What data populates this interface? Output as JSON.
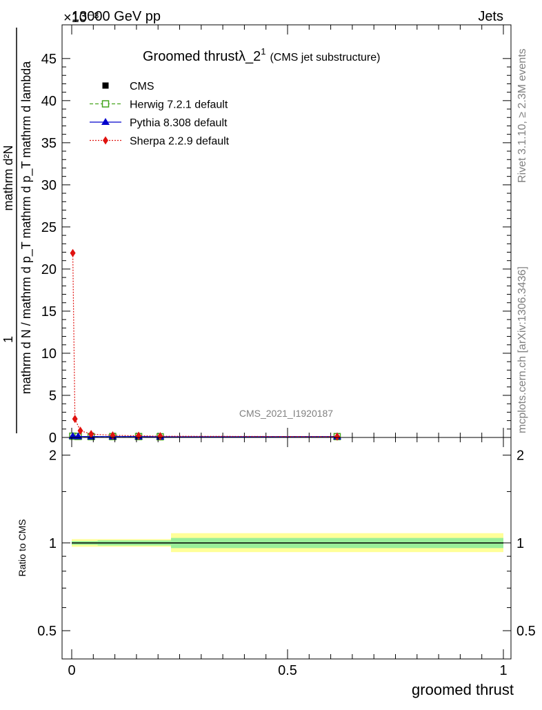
{
  "header": {
    "left": "13000 GeV pp",
    "right": "Jets",
    "exponent": "×10⁻³"
  },
  "side_labels": {
    "rivet": "Rivet 3.1.10, ≥ 2.3M events",
    "mcplots": "mcplots.cern.ch [arXiv:1306.3436]"
  },
  "analysis_id": "CMS_2021_I1920187",
  "colors": {
    "cms": "#000000",
    "herwig": "#44a41c",
    "pythia": "#0000cc",
    "sherpa": "#e0120f",
    "band_outer": "#ffff99",
    "band_inner": "#99ee99"
  },
  "chart_data": [
    {
      "type": "line",
      "title_main": "Groomed thrustλ_2",
      "title_sup": "1",
      "title_suffix": "(CMS jet substructure)",
      "ylabel_num": "mathrm d²N",
      "ylabel_den": "mathrm d N / mathrm d p_T mathrm d p_T mathrm d lambda",
      "ylabel_prefix": "1",
      "xlabel": "groomed thrust",
      "xlim": [
        0,
        1
      ],
      "ylim": [
        0,
        49
      ],
      "y_unit_scale": "1e-3",
      "yticks": [
        "0",
        "5",
        "10",
        "15",
        "20",
        "25",
        "30",
        "35",
        "40",
        "45"
      ],
      "yticks_values": [
        0,
        5,
        10,
        15,
        20,
        25,
        30,
        35,
        40,
        45
      ],
      "legend_placement": "top-left",
      "series": [
        {
          "name": "CMS",
          "key": "cms",
          "marker": "square-filled",
          "x": [
            0.0025,
            0.015,
            0.045,
            0.095,
            0.155,
            0.205,
            0.615
          ],
          "y": [
            0.15,
            0.12,
            0.1,
            0.1,
            0.1,
            0.08,
            0.1
          ]
        },
        {
          "name": "Herwig 7.2.1 default",
          "key": "herwig",
          "marker": "square-open",
          "x": [
            0.0025,
            0.015,
            0.045,
            0.095,
            0.155,
            0.205,
            0.615
          ],
          "y": [
            0.15,
            0.12,
            0.1,
            0.1,
            0.1,
            0.08,
            0.1
          ]
        },
        {
          "name": "Pythia 8.308 default",
          "key": "pythia",
          "marker": "triangle",
          "x": [
            0.0025,
            0.015,
            0.045,
            0.095,
            0.155,
            0.205,
            0.615
          ],
          "y": [
            0.15,
            0.12,
            0.1,
            0.1,
            0.1,
            0.08,
            0.1
          ]
        },
        {
          "name": "Sherpa 2.2.9 default",
          "key": "sherpa",
          "marker": "diamond",
          "x": [
            0.0025,
            0.0075,
            0.02,
            0.045,
            0.095,
            0.155,
            0.205,
            0.615
          ],
          "y": [
            21.9,
            2.2,
            0.8,
            0.4,
            0.25,
            0.2,
            0.15,
            0.1
          ]
        }
      ]
    },
    {
      "type": "line",
      "ylabel": "Ratio to CMS",
      "xlabel": "groomed thrust",
      "xlim": [
        0,
        1
      ],
      "ylim": [
        0.4,
        2.3
      ],
      "y_scale": "log",
      "yticks": [
        "0.5",
        "1",
        "2"
      ],
      "yticks_values": [
        0.5,
        1,
        2
      ],
      "xticks": [
        "0",
        "0.5",
        "1"
      ],
      "xticks_values": [
        0,
        0.5,
        1
      ],
      "reference": 1,
      "bands": [
        {
          "x0": 0.0,
          "x1": 0.06,
          "outer": [
            0.97,
            1.03
          ],
          "inner": [
            0.985,
            1.015
          ]
        },
        {
          "x0": 0.06,
          "x1": 0.23,
          "outer": [
            0.97,
            1.03
          ],
          "inner": [
            0.98,
            1.02
          ]
        },
        {
          "x0": 0.23,
          "x1": 1.0,
          "outer": [
            0.93,
            1.08
          ],
          "inner": [
            0.96,
            1.04
          ]
        }
      ]
    }
  ]
}
